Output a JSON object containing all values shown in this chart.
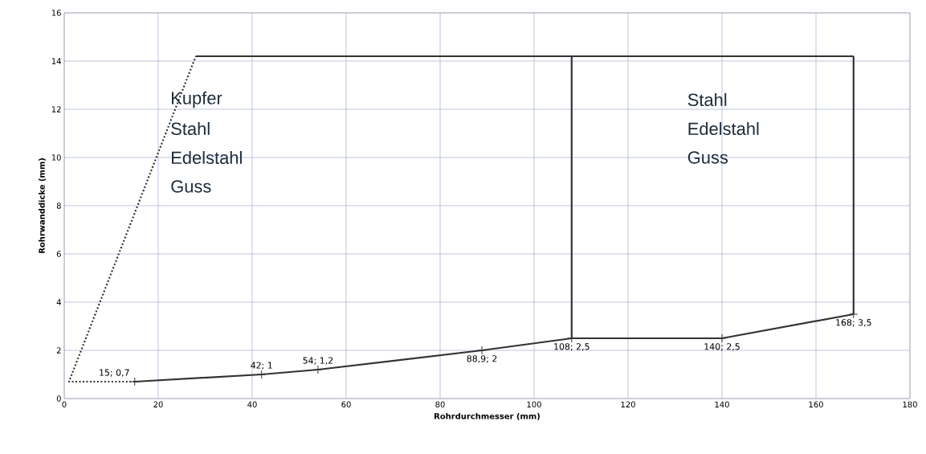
{
  "chart_data": {
    "type": "line",
    "xlabel": "Rohrdurchmesser (mm)",
    "ylabel": "Rohrwanddicke (mm)",
    "xlim": [
      0,
      180
    ],
    "xticks": [
      0,
      20,
      40,
      60,
      80,
      100,
      120,
      140,
      160,
      180
    ],
    "ylim": [
      0,
      16
    ],
    "yticks": [
      0,
      2,
      4,
      6,
      8,
      10,
      12,
      14,
      16
    ],
    "grid": true,
    "annotations": [
      "Kupfer",
      "Stahl",
      "Edelstahl",
      "Guss",
      "Stahl",
      "Edelstahl",
      "Guss"
    ],
    "series": [
      {
        "color": "#333333",
        "x": [
          15,
          42,
          54,
          88.9,
          108,
          140,
          168
        ],
        "values": [
          0.7,
          1,
          1.2,
          2,
          2.5,
          2.5,
          3.5
        ],
        "marker": "cross",
        "value_labels": [
          "15; 0,7",
          "42; 1",
          "54; 1,2",
          "88,9; 2",
          "108; 2,5",
          "140; 2,5",
          "168; 3,5"
        ]
      },
      {
        "color": "#333333",
        "x": [
          15,
          1,
          28
        ],
        "values": [
          0.7,
          0.7,
          14.2
        ],
        "line_style": "dotted"
      },
      {
        "color": "#333333",
        "x": [
          28,
          168
        ],
        "values": [
          14.2,
          14.2
        ]
      },
      {
        "color": "#333333",
        "x": [
          108,
          108
        ],
        "values": [
          2.5,
          14.2
        ]
      },
      {
        "color": "#333333",
        "x": [
          168,
          168
        ],
        "values": [
          3.5,
          14.2
        ]
      }
    ]
  }
}
